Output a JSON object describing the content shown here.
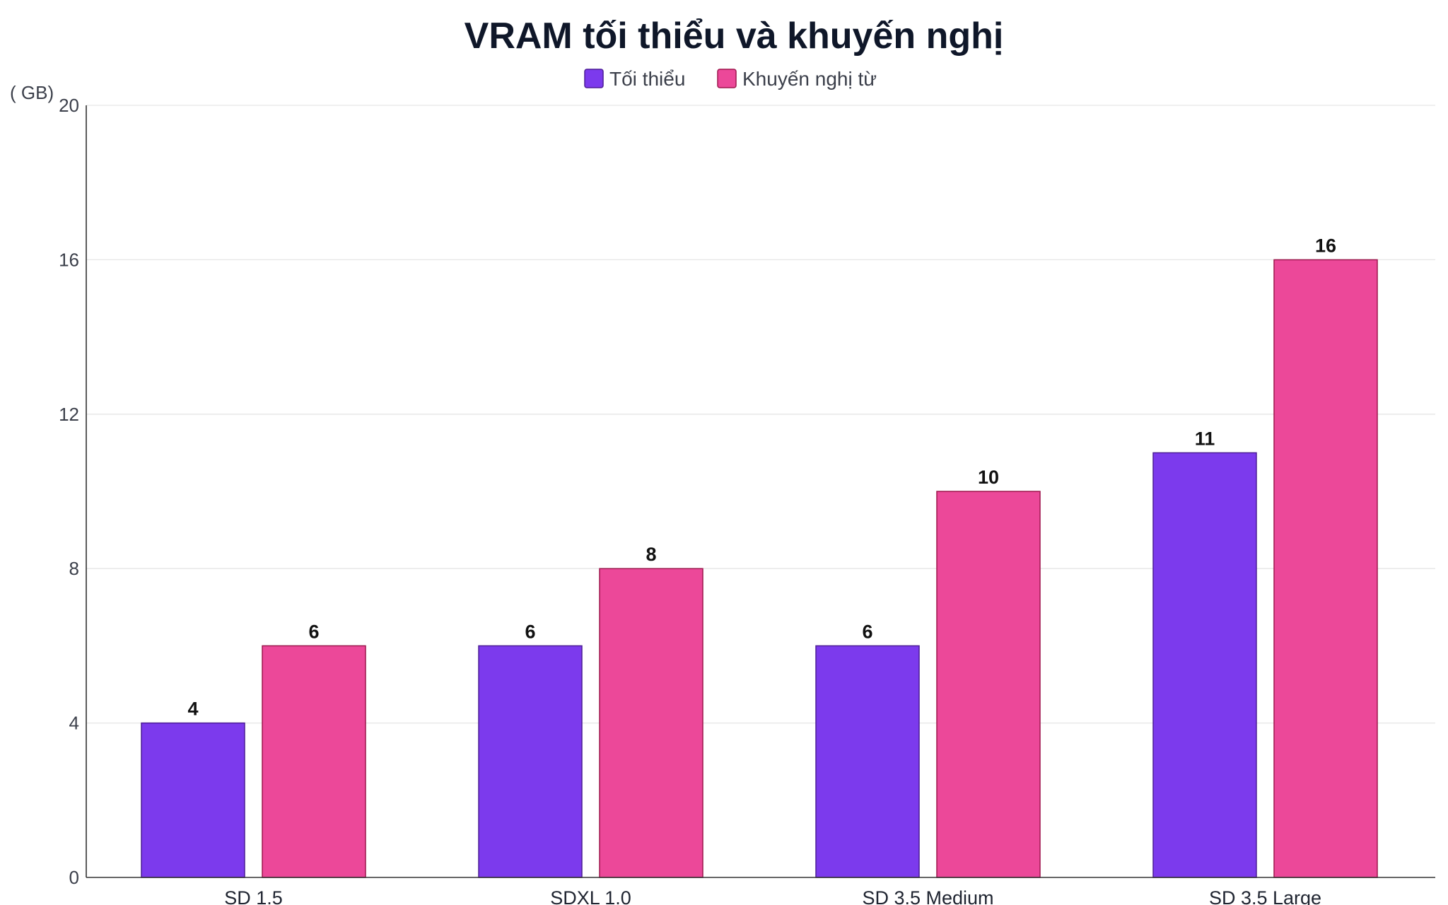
{
  "chart_data": {
    "type": "bar",
    "title": "VRAM tối thiểu và khuyến nghị",
    "unit_label": "( GB)",
    "categories": [
      "SD 1.5",
      "SDXL 1.0",
      "SD 3.5 Medium",
      "SD 3.5 Large"
    ],
    "series": [
      {
        "name": "Tối thiểu",
        "values": [
          4,
          6,
          6,
          11
        ],
        "color": "#7c3aed",
        "border": "#4c1d95"
      },
      {
        "name": "Khuyến nghị từ",
        "values": [
          6,
          8,
          10,
          16
        ],
        "color": "#ec4899",
        "border": "#9d174d"
      }
    ],
    "ylim": [
      0,
      20
    ],
    "yticks": [
      0,
      4,
      8,
      12,
      16,
      20
    ],
    "grid": true,
    "legend_position": "top-center",
    "data_labels": true
  }
}
